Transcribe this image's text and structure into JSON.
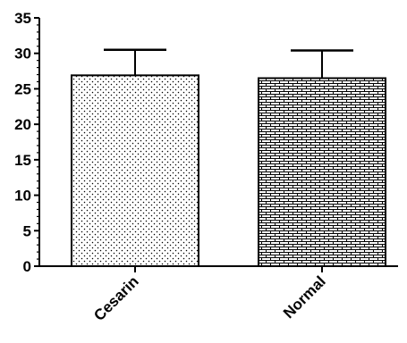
{
  "chart_data": {
    "type": "bar",
    "categories": [
      "Cesarin",
      "Normal"
    ],
    "values": [
      26.9,
      26.5
    ],
    "error_upper": [
      30.5,
      30.4
    ],
    "patterns": [
      "dots",
      "bricks"
    ],
    "ylim": [
      0,
      35
    ],
    "yticks": [
      0,
      5,
      10,
      15,
      20,
      25,
      30,
      35
    ],
    "grid": false,
    "legend": "none",
    "title": "",
    "xlabel": "",
    "ylabel": ""
  }
}
